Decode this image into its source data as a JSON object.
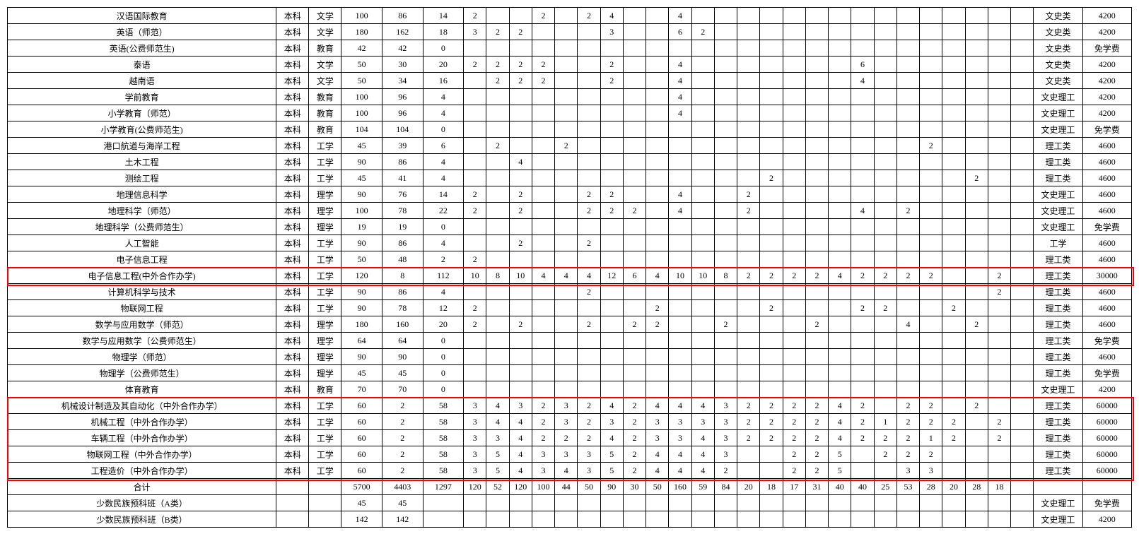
{
  "table": {
    "background_color": "#ffffff",
    "border_color": "#000000",
    "highlight_color": "#ff0000",
    "font_family": "SimSun",
    "font_size": 12,
    "column_widths": {
      "name": 330,
      "level": 40,
      "category": 40,
      "total": 50,
      "enrolled": 50,
      "remaining": 50,
      "small": 28,
      "type": 60,
      "fee": 60
    },
    "num_small_cols": 28,
    "highlight_rows": [
      16,
      24,
      25,
      26,
      27,
      28
    ],
    "rows": [
      {
        "name": "汉语国际教育",
        "level": "本科",
        "cat": "文学",
        "c": [
          "100",
          "86",
          "14",
          "2",
          "",
          "",
          "2",
          "",
          "2",
          "4",
          "",
          "",
          "4",
          "",
          "",
          "",
          "",
          "",
          "",
          "",
          "",
          "",
          "",
          "",
          "",
          "",
          "",
          ""
        ],
        "type": "文史类",
        "fee": "4200"
      },
      {
        "name": "英语（师范）",
        "level": "本科",
        "cat": "文学",
        "c": [
          "180",
          "162",
          "18",
          "3",
          "2",
          "2",
          "",
          "",
          "",
          "3",
          "",
          "",
          "6",
          "2",
          "",
          "",
          "",
          "",
          "",
          "",
          "",
          "",
          "",
          "",
          "",
          "",
          "",
          ""
        ],
        "type": "文史类",
        "fee": "4200"
      },
      {
        "name": "英语(公费师范生)",
        "level": "本科",
        "cat": "教育",
        "c": [
          "42",
          "42",
          "0",
          "",
          "",
          "",
          "",
          "",
          "",
          "",
          "",
          "",
          "",
          "",
          "",
          "",
          "",
          "",
          "",
          "",
          "",
          "",
          "",
          "",
          "",
          "",
          "",
          ""
        ],
        "type": "文史类",
        "fee": "免学费"
      },
      {
        "name": "泰语",
        "level": "本科",
        "cat": "文学",
        "c": [
          "50",
          "30",
          "20",
          "2",
          "2",
          "2",
          "2",
          "",
          "",
          "2",
          "",
          "",
          "4",
          "",
          "",
          "",
          "",
          "",
          "",
          "",
          "6",
          "",
          "",
          "",
          "",
          "",
          "",
          ""
        ],
        "type": "文史类",
        "fee": "4200"
      },
      {
        "name": "越南语",
        "level": "本科",
        "cat": "文学",
        "c": [
          "50",
          "34",
          "16",
          "",
          "2",
          "2",
          "2",
          "",
          "",
          "2",
          "",
          "",
          "4",
          "",
          "",
          "",
          "",
          "",
          "",
          "",
          "4",
          "",
          "",
          "",
          "",
          "",
          "",
          ""
        ],
        "type": "文史类",
        "fee": "4200"
      },
      {
        "name": "学前教育",
        "level": "本科",
        "cat": "教育",
        "c": [
          "100",
          "96",
          "4",
          "",
          "",
          "",
          "",
          "",
          "",
          "",
          "",
          "",
          "4",
          "",
          "",
          "",
          "",
          "",
          "",
          "",
          "",
          "",
          "",
          "",
          "",
          "",
          "",
          ""
        ],
        "type": "文史理工",
        "fee": "4200"
      },
      {
        "name": "小学教育（师范）",
        "level": "本科",
        "cat": "教育",
        "c": [
          "100",
          "96",
          "4",
          "",
          "",
          "",
          "",
          "",
          "",
          "",
          "",
          "",
          "4",
          "",
          "",
          "",
          "",
          "",
          "",
          "",
          "",
          "",
          "",
          "",
          "",
          "",
          "",
          ""
        ],
        "type": "文史理工",
        "fee": "4200"
      },
      {
        "name": "小学教育(公费师范生)",
        "level": "本科",
        "cat": "教育",
        "c": [
          "104",
          "104",
          "0",
          "",
          "",
          "",
          "",
          "",
          "",
          "",
          "",
          "",
          "",
          "",
          "",
          "",
          "",
          "",
          "",
          "",
          "",
          "",
          "",
          "",
          "",
          "",
          "",
          ""
        ],
        "type": "文史理工",
        "fee": "免学费"
      },
      {
        "name": "港口航道与海岸工程",
        "level": "本科",
        "cat": "工学",
        "c": [
          "45",
          "39",
          "6",
          "",
          "2",
          "",
          "",
          "2",
          "",
          "",
          "",
          "",
          "",
          "",
          "",
          "",
          "",
          "",
          "",
          "",
          "",
          "",
          "",
          "2",
          "",
          "",
          "",
          ""
        ],
        "type": "理工类",
        "fee": "4600"
      },
      {
        "name": "土木工程",
        "level": "本科",
        "cat": "工学",
        "c": [
          "90",
          "86",
          "4",
          "",
          "",
          "4",
          "",
          "",
          "",
          "",
          "",
          "",
          "",
          "",
          "",
          "",
          "",
          "",
          "",
          "",
          "",
          "",
          "",
          "",
          "",
          "",
          "",
          ""
        ],
        "type": "理工类",
        "fee": "4600"
      },
      {
        "name": "测绘工程",
        "level": "本科",
        "cat": "工学",
        "c": [
          "45",
          "41",
          "4",
          "",
          "",
          "",
          "",
          "",
          "",
          "",
          "",
          "",
          "",
          "",
          "",
          "",
          "2",
          "",
          "",
          "",
          "",
          "",
          "",
          "",
          "",
          "2",
          "",
          ""
        ],
        "type": "理工类",
        "fee": "4600"
      },
      {
        "name": "地理信息科学",
        "level": "本科",
        "cat": "理学",
        "c": [
          "90",
          "76",
          "14",
          "2",
          "",
          "2",
          "",
          "",
          "2",
          "2",
          "",
          "",
          "4",
          "",
          "",
          "2",
          "",
          "",
          "",
          "",
          "",
          "",
          "",
          "",
          "",
          "",
          "",
          ""
        ],
        "type": "文史理工",
        "fee": "4600"
      },
      {
        "name": "地理科学（师范）",
        "level": "本科",
        "cat": "理学",
        "c": [
          "100",
          "78",
          "22",
          "2",
          "",
          "2",
          "",
          "",
          "2",
          "2",
          "2",
          "",
          "4",
          "",
          "",
          "2",
          "",
          "",
          "",
          "",
          "4",
          "",
          "2",
          "",
          "",
          "",
          "",
          ""
        ],
        "type": "文史理工",
        "fee": "4600"
      },
      {
        "name": "地理科学（公费师范生）",
        "level": "本科",
        "cat": "理学",
        "c": [
          "19",
          "19",
          "0",
          "",
          "",
          "",
          "",
          "",
          "",
          "",
          "",
          "",
          "",
          "",
          "",
          "",
          "",
          "",
          "",
          "",
          "",
          "",
          "",
          "",
          "",
          "",
          "",
          ""
        ],
        "type": "文史理工",
        "fee": "免学费"
      },
      {
        "name": "人工智能",
        "level": "本科",
        "cat": "工学",
        "c": [
          "90",
          "86",
          "4",
          "",
          "",
          "2",
          "",
          "",
          "2",
          "",
          "",
          "",
          "",
          "",
          "",
          "",
          "",
          "",
          "",
          "",
          "",
          "",
          "",
          "",
          "",
          "",
          "",
          ""
        ],
        "type": "工学",
        "fee": "4600"
      },
      {
        "name": "电子信息工程",
        "level": "本科",
        "cat": "工学",
        "c": [
          "50",
          "48",
          "2",
          "2",
          "",
          "",
          "",
          "",
          "",
          "",
          "",
          "",
          "",
          "",
          "",
          "",
          "",
          "",
          "",
          "",
          "",
          "",
          "",
          "",
          "",
          "",
          "",
          ""
        ],
        "type": "理工类",
        "fee": "4600"
      },
      {
        "name": "电子信息工程(中外合作办学)",
        "level": "本科",
        "cat": "工学",
        "c": [
          "120",
          "8",
          "112",
          "10",
          "8",
          "10",
          "4",
          "4",
          "4",
          "12",
          "6",
          "4",
          "10",
          "10",
          "8",
          "2",
          "2",
          "2",
          "2",
          "4",
          "2",
          "2",
          "2",
          "2",
          "",
          "",
          "2",
          ""
        ],
        "type": "理工类",
        "fee": "30000"
      },
      {
        "name": "计算机科学与技术",
        "level": "本科",
        "cat": "工学",
        "c": [
          "90",
          "86",
          "4",
          "",
          "",
          "",
          "",
          "",
          "2",
          "",
          "",
          "",
          "",
          "",
          "",
          "",
          "",
          "",
          "",
          "",
          "",
          "",
          "",
          "",
          "",
          "",
          "2",
          ""
        ],
        "type": "理工类",
        "fee": "4600"
      },
      {
        "name": "物联网工程",
        "level": "本科",
        "cat": "工学",
        "c": [
          "90",
          "78",
          "12",
          "2",
          "",
          "",
          "",
          "",
          "",
          "",
          "",
          "2",
          "",
          "",
          "",
          "",
          "2",
          "",
          "",
          "",
          "2",
          "2",
          "",
          "",
          "2",
          "",
          "",
          ""
        ],
        "type": "理工类",
        "fee": "4600"
      },
      {
        "name": "数学与应用数学（师范）",
        "level": "本科",
        "cat": "理学",
        "c": [
          "180",
          "160",
          "20",
          "2",
          "",
          "2",
          "",
          "",
          "2",
          "",
          "2",
          "2",
          "",
          "",
          "2",
          "",
          "",
          "",
          "2",
          "",
          "",
          "",
          "4",
          "",
          "",
          "2",
          "",
          ""
        ],
        "type": "理工类",
        "fee": "4600"
      },
      {
        "name": "数学与应用数学（公费师范生）",
        "level": "本科",
        "cat": "理学",
        "c": [
          "64",
          "64",
          "0",
          "",
          "",
          "",
          "",
          "",
          "",
          "",
          "",
          "",
          "",
          "",
          "",
          "",
          "",
          "",
          "",
          "",
          "",
          "",
          "",
          "",
          "",
          "",
          "",
          ""
        ],
        "type": "理工类",
        "fee": "免学费"
      },
      {
        "name": "物理学（师范）",
        "level": "本科",
        "cat": "理学",
        "c": [
          "90",
          "90",
          "0",
          "",
          "",
          "",
          "",
          "",
          "",
          "",
          "",
          "",
          "",
          "",
          "",
          "",
          "",
          "",
          "",
          "",
          "",
          "",
          "",
          "",
          "",
          "",
          "",
          ""
        ],
        "type": "理工类",
        "fee": "4600"
      },
      {
        "name": "物理学（公费师范生）",
        "level": "本科",
        "cat": "理学",
        "c": [
          "45",
          "45",
          "0",
          "",
          "",
          "",
          "",
          "",
          "",
          "",
          "",
          "",
          "",
          "",
          "",
          "",
          "",
          "",
          "",
          "",
          "",
          "",
          "",
          "",
          "",
          "",
          "",
          ""
        ],
        "type": "理工类",
        "fee": "免学费"
      },
      {
        "name": "体育教育",
        "level": "本科",
        "cat": "教育",
        "c": [
          "70",
          "70",
          "0",
          "",
          "",
          "",
          "",
          "",
          "",
          "",
          "",
          "",
          "",
          "",
          "",
          "",
          "",
          "",
          "",
          "",
          "",
          "",
          "",
          "",
          "",
          "",
          "",
          ""
        ],
        "type": "文史理工",
        "fee": "4200"
      },
      {
        "name": "机械设计制造及其自动化（中外合作办学）",
        "level": "本科",
        "cat": "工学",
        "c": [
          "60",
          "2",
          "58",
          "3",
          "4",
          "3",
          "2",
          "3",
          "2",
          "4",
          "2",
          "4",
          "4",
          "4",
          "3",
          "2",
          "2",
          "2",
          "2",
          "4",
          "2",
          "",
          "2",
          "2",
          "",
          "2",
          "",
          ""
        ],
        "type": "理工类",
        "fee": "60000"
      },
      {
        "name": "机械工程（中外合作办学）",
        "level": "本科",
        "cat": "工学",
        "c": [
          "60",
          "2",
          "58",
          "3",
          "4",
          "4",
          "2",
          "3",
          "2",
          "3",
          "2",
          "3",
          "3",
          "3",
          "3",
          "2",
          "2",
          "2",
          "2",
          "4",
          "2",
          "1",
          "2",
          "2",
          "2",
          "",
          "2",
          ""
        ],
        "type": "理工类",
        "fee": "60000"
      },
      {
        "name": "车辆工程（中外合作办学）",
        "level": "本科",
        "cat": "工学",
        "c": [
          "60",
          "2",
          "58",
          "3",
          "3",
          "4",
          "2",
          "2",
          "2",
          "4",
          "2",
          "3",
          "3",
          "4",
          "3",
          "2",
          "2",
          "2",
          "2",
          "4",
          "2",
          "2",
          "2",
          "1",
          "2",
          "",
          "2",
          ""
        ],
        "type": "理工类",
        "fee": "60000"
      },
      {
        "name": "物联网工程（中外合作办学）",
        "level": "本科",
        "cat": "工学",
        "c": [
          "60",
          "2",
          "58",
          "3",
          "5",
          "4",
          "3",
          "3",
          "3",
          "5",
          "2",
          "4",
          "4",
          "4",
          "3",
          "",
          "",
          "2",
          "2",
          "5",
          "",
          "2",
          "2",
          "2",
          "",
          "",
          "",
          ""
        ],
        "type": "理工类",
        "fee": "60000"
      },
      {
        "name": "工程造价（中外合作办学）",
        "level": "本科",
        "cat": "工学",
        "c": [
          "60",
          "2",
          "58",
          "3",
          "5",
          "4",
          "3",
          "4",
          "3",
          "5",
          "2",
          "4",
          "4",
          "4",
          "2",
          "",
          "",
          "2",
          "2",
          "5",
          "",
          "",
          "3",
          "3",
          "",
          "",
          "",
          ""
        ],
        "type": "理工类",
        "fee": "60000"
      },
      {
        "name": "合计",
        "level": "",
        "cat": "",
        "c": [
          "5700",
          "4403",
          "1297",
          "120",
          "52",
          "120",
          "100",
          "44",
          "50",
          "90",
          "30",
          "50",
          "160",
          "59",
          "84",
          "20",
          "18",
          "17",
          "31",
          "40",
          "40",
          "25",
          "53",
          "28",
          "20",
          "28",
          "18",
          ""
        ],
        "type": "",
        "fee": ""
      },
      {
        "name": "少数民族预科班（A类）",
        "level": "",
        "cat": "",
        "c": [
          "45",
          "45",
          "",
          "",
          "",
          "",
          "",
          "",
          "",
          "",
          "",
          "",
          "",
          "",
          "",
          "",
          "",
          "",
          "",
          "",
          "",
          "",
          "",
          "",
          "",
          "",
          "",
          ""
        ],
        "type": "文史理工",
        "fee": "免学费"
      },
      {
        "name": "少数民族预科班（B类）",
        "level": "",
        "cat": "",
        "c": [
          "142",
          "142",
          "",
          "",
          "",
          "",
          "",
          "",
          "",
          "",
          "",
          "",
          "",
          "",
          "",
          "",
          "",
          "",
          "",
          "",
          "",
          "",
          "",
          "",
          "",
          "",
          "",
          ""
        ],
        "type": "文史理工",
        "fee": "4200"
      }
    ]
  }
}
